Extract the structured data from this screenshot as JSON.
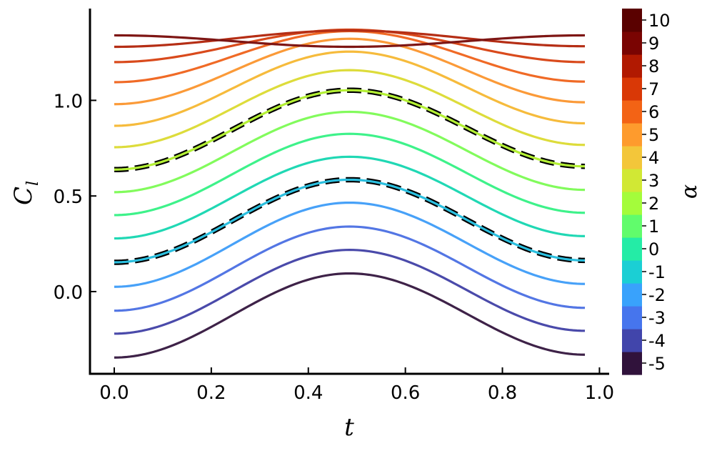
{
  "chart_data": {
    "type": "line",
    "title": "",
    "xlabel": "t",
    "ylabel": "C_l",
    "xlim": [
      -0.05,
      1.02
    ],
    "ylim": [
      -0.43,
      1.48
    ],
    "x_ticks": [
      "0.0",
      "0.2",
      "0.4",
      "0.6",
      "0.8",
      "1.0"
    ],
    "y_ticks": [
      "0.0",
      "0.5",
      "1.0"
    ],
    "x_domain": [
      0.0,
      0.97
    ],
    "colorbar": {
      "label": "α",
      "ticks": [
        "-5",
        "-4",
        "-3",
        "-2",
        "-1",
        "0",
        "1",
        "2",
        "3",
        "4",
        "5",
        "6",
        "7",
        "8",
        "9",
        "10"
      ],
      "colors": [
        "#30123b",
        "#4145ab",
        "#4675ed",
        "#39a2fc",
        "#1bcfd4",
        "#24eca6",
        "#61fc6c",
        "#a4fc3b",
        "#d1e834",
        "#f3c63a",
        "#fe9b2d",
        "#f36315",
        "#d93806",
        "#b11901",
        "#7a0402",
        "#5a0100"
      ]
    },
    "series": [
      {
        "alpha": -5,
        "color": "#3e2248",
        "y_start": -0.345,
        "y_peak": 0.095,
        "y_end": -0.33
      },
      {
        "alpha": -4,
        "color": "#4a4aaa",
        "y_start": -0.22,
        "y_peak": 0.218,
        "y_end": -0.205
      },
      {
        "alpha": -3,
        "color": "#5376e4",
        "y_start": -0.1,
        "y_peak": 0.34,
        "y_end": -0.085
      },
      {
        "alpha": -2,
        "color": "#47a1f8",
        "y_start": 0.025,
        "y_peak": 0.465,
        "y_end": 0.04
      },
      {
        "alpha": -1,
        "color": "#2bbfdf",
        "y_start": 0.153,
        "y_peak": 0.585,
        "y_end": 0.163,
        "reference": true
      },
      {
        "alpha": 0,
        "color": "#20d8b4",
        "y_start": 0.278,
        "y_peak": 0.705,
        "y_end": 0.29
      },
      {
        "alpha": 1,
        "color": "#3ef28a",
        "y_start": 0.4,
        "y_peak": 0.825,
        "y_end": 0.412
      },
      {
        "alpha": 2,
        "color": "#82fb5c",
        "y_start": 0.52,
        "y_peak": 0.94,
        "y_end": 0.532
      },
      {
        "alpha": 3,
        "color": "#b4f035",
        "y_start": 0.638,
        "y_peak": 1.053,
        "y_end": 0.655,
        "reference": true
      },
      {
        "alpha": 4,
        "color": "#dddc3b",
        "y_start": 0.755,
        "y_peak": 1.158,
        "y_end": 0.767
      },
      {
        "alpha": 5,
        "color": "#f6bb3c",
        "y_start": 0.867,
        "y_peak": 1.255,
        "y_end": 0.88
      },
      {
        "alpha": 6,
        "color": "#fb9a38",
        "y_start": 0.98,
        "y_peak": 1.322,
        "y_end": 0.99
      },
      {
        "alpha": 7,
        "color": "#f06a26",
        "y_start": 1.095,
        "y_peak": 1.362,
        "y_end": 1.098
      },
      {
        "alpha": 8,
        "color": "#d94a1c",
        "y_start": 1.2,
        "y_peak": 1.37,
        "y_end": 1.2
      },
      {
        "alpha": 9,
        "color": "#b52e15",
        "y_start": 1.28,
        "y_peak": 1.365,
        "y_end": 1.283
      },
      {
        "alpha": 10,
        "color": "#7e1614",
        "y_start": 1.34,
        "y_peak": 1.28,
        "y_end": 1.343,
        "inverted": true
      }
    ]
  }
}
